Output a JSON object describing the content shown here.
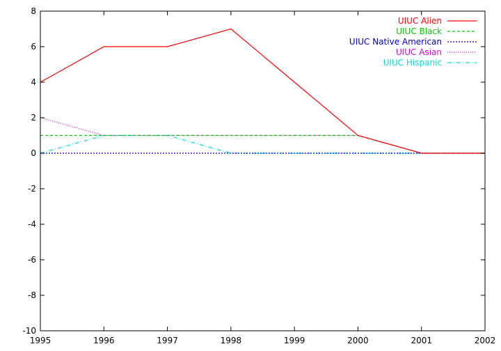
{
  "chart_data": {
    "type": "line",
    "title": "",
    "xlabel": "",
    "ylabel": "",
    "x": [
      1995,
      1996,
      1997,
      1998,
      1999,
      2000,
      2001,
      2002
    ],
    "xlim": [
      1995,
      2002
    ],
    "ylim": [
      -10,
      8
    ],
    "x_ticks": [
      "1995",
      "1996",
      "1997",
      "1998",
      "1999",
      "2000",
      "2001",
      "2002"
    ],
    "y_ticks": [
      "-10",
      "-8",
      "-6",
      "-4",
      "-2",
      "0",
      "2",
      "4",
      "6",
      "8"
    ],
    "grid": false,
    "legend_position": "top-right",
    "series": [
      {
        "name": "UIUC Alien",
        "color": "#ff0000",
        "dash": "solid",
        "values": [
          4,
          6,
          6,
          7,
          4,
          1,
          0,
          0
        ]
      },
      {
        "name": "UIUC Black",
        "color": "#00cc00",
        "dash": "dashed",
        "values": [
          1,
          1,
          1,
          1,
          1,
          1,
          0,
          0
        ]
      },
      {
        "name": "UIUC Native American",
        "color": "#0000cc",
        "dash": "dotted",
        "values": [
          0,
          0,
          0,
          0,
          0,
          0,
          0,
          0
        ]
      },
      {
        "name": "UIUC Asian",
        "color": "#dd00dd",
        "dash": "fine-dotted",
        "values": [
          2,
          1,
          1,
          1,
          1,
          1,
          0,
          0
        ]
      },
      {
        "name": "UIUC Hispanic",
        "color": "#00dddd",
        "dash": "dash-dot",
        "values": [
          0,
          1,
          1,
          0,
          0,
          0,
          0,
          0
        ]
      }
    ]
  }
}
